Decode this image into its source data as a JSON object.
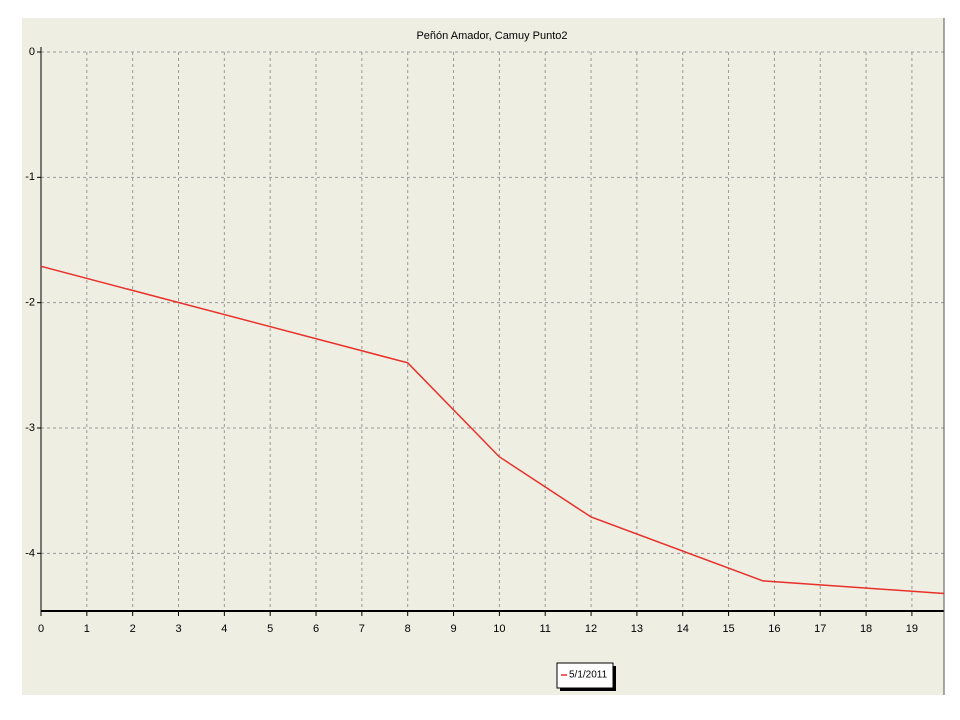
{
  "chart_data": {
    "type": "line",
    "title": "Peñón Amador, Camuy Punto2",
    "x": [
      0,
      8,
      10,
      12,
      15.75,
      19.7
    ],
    "series": [
      {
        "name": "5/1/2011",
        "color": "#e8302a",
        "values": [
          -1.71,
          -2.48,
          -3.23,
          -3.71,
          -4.22,
          -4.32
        ]
      }
    ],
    "xlim": [
      0,
      19.7
    ],
    "xticks": [
      0,
      1,
      2,
      3,
      4,
      5,
      6,
      7,
      8,
      9,
      10,
      11,
      12,
      13,
      14,
      15,
      16,
      17,
      18,
      19
    ],
    "ylim": [
      -4.46,
      0
    ],
    "yticks": [
      0,
      -1,
      -2,
      -3,
      -4
    ],
    "grid": true,
    "legend": "bottom"
  }
}
